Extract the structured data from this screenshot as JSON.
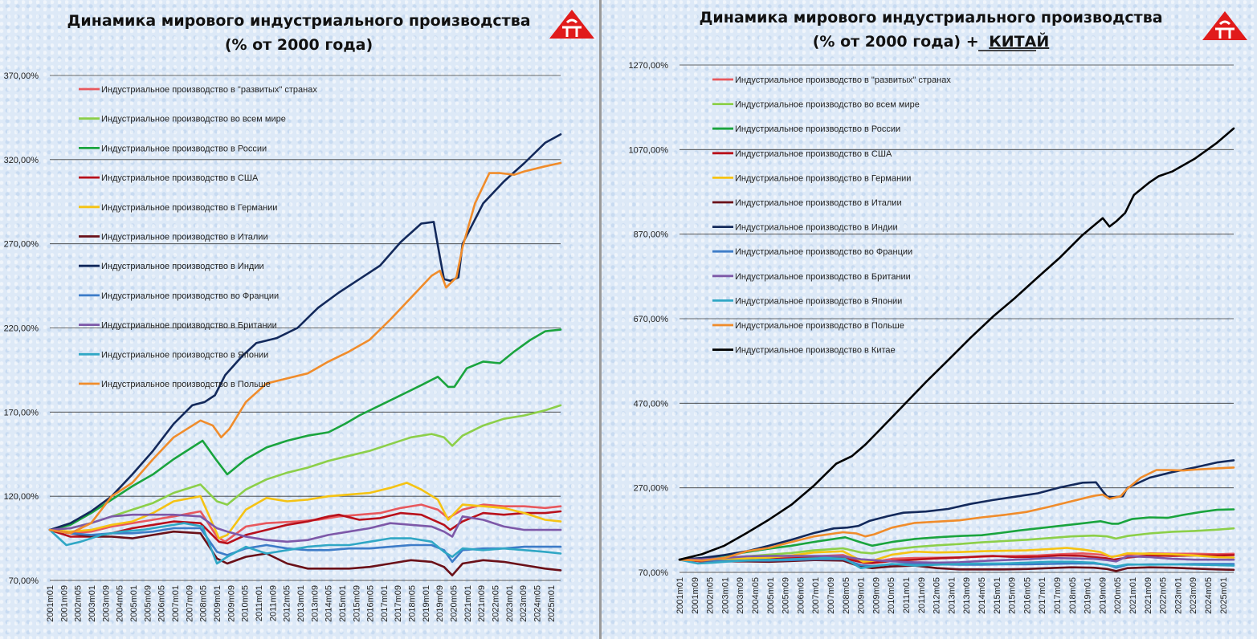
{
  "chart_data": [
    {
      "type": "line",
      "title": "Динамика мирового индустриального производства",
      "subtitle": "(% от 2000 года)",
      "ylim": [
        70,
        370
      ],
      "yticks": [
        "70,00%",
        "120,00%",
        "170,00%",
        "220,00%",
        "270,00%",
        "320,00%",
        "370,00%"
      ],
      "ytick_values": [
        70,
        120,
        170,
        220,
        270,
        320,
        370
      ],
      "x_labels": [
        "2001m01",
        "2001m09",
        "2002m05",
        "2003m01",
        "2003m09",
        "2004m05",
        "2005m01",
        "2005m09",
        "2006m05",
        "2007m01",
        "2007m09",
        "2008m05",
        "2009m01",
        "2009m09",
        "2010m05",
        "2011m01",
        "2011m09",
        "2012m05",
        "2013m01",
        "2013m09",
        "2014m05",
        "2015m01",
        "2015m09",
        "2016m05",
        "2017m01",
        "2017m09",
        "2018m05",
        "2019m01",
        "2019m09",
        "2020m05",
        "2021m01",
        "2021m09",
        "2022m05",
        "2023m01",
        "2023m09",
        "2024m05",
        "2025m01"
      ],
      "x_range": [
        2001.0,
        2025.75
      ],
      "grid": "horizontal",
      "legend": "top-left",
      "series": [
        {
          "name": "Индустриальное производство в \"развитых\" странах",
          "color": "#e8585d",
          "x": [
            2001,
            2002,
            2003,
            2004,
            2005,
            2006,
            2007,
            2008.3,
            2009.1,
            2009.5,
            2010.5,
            2011.5,
            2013,
            2014,
            2015,
            2016,
            2017,
            2018,
            2019,
            2019.8,
            2020.3,
            2021,
            2022,
            2023,
            2024,
            2025,
            2025.75
          ],
          "y": [
            100,
            98,
            99,
            102,
            104,
            106,
            108,
            111,
            96,
            93,
            102,
            104,
            105,
            106,
            108,
            109,
            110,
            113,
            115,
            112,
            107,
            112,
            115,
            114,
            114,
            113,
            114
          ]
        },
        {
          "name": "Индустриальное производство во всем мире",
          "color": "#8ccf49",
          "x": [
            2001,
            2002,
            2003,
            2004,
            2005,
            2006,
            2007,
            2008.3,
            2009.1,
            2009.6,
            2010.5,
            2011.5,
            2012.5,
            2013.5,
            2014.5,
            2015.5,
            2016.5,
            2017.5,
            2018.5,
            2019.5,
            2020.1,
            2020.5,
            2021,
            2022,
            2023,
            2024,
            2025,
            2025.75
          ],
          "y": [
            100,
            101,
            104,
            108,
            112,
            116,
            122,
            127,
            117,
            115,
            124,
            130,
            134,
            137,
            141,
            144,
            147,
            151,
            155,
            157,
            155,
            150,
            156,
            162,
            166,
            168,
            171,
            174
          ]
        },
        {
          "name": "Индустриальное производство в России",
          "color": "#1aa43e",
          "x": [
            2001,
            2002,
            2003,
            2004,
            2005,
            2006,
            2007,
            2008.4,
            2009.1,
            2009.6,
            2010.5,
            2011.5,
            2012.5,
            2013.5,
            2014.5,
            2015.3,
            2016,
            2017,
            2018,
            2019,
            2019.8,
            2020.3,
            2020.6,
            2021.2,
            2022,
            2022.8,
            2023.5,
            2024.3,
            2025,
            2025.75
          ],
          "y": [
            100,
            103,
            110,
            118,
            126,
            133,
            142,
            153,
            141,
            133,
            142,
            149,
            153,
            156,
            158,
            163,
            168,
            174,
            180,
            186,
            191,
            185,
            185,
            196,
            200,
            199,
            206,
            213,
            218,
            219
          ]
        },
        {
          "name": "Индустриальное производство в США",
          "color": "#b8101b",
          "x": [
            2001,
            2002,
            2003,
            2004,
            2005,
            2006,
            2007,
            2008.3,
            2009.2,
            2009.6,
            2010.5,
            2011.5,
            2012.5,
            2013.5,
            2014.5,
            2015,
            2016,
            2017,
            2018,
            2019,
            2020.1,
            2020.4,
            2021,
            2022,
            2023,
            2024,
            2025,
            2025.75
          ],
          "y": [
            100,
            96,
            96,
            98,
            101,
            103,
            105,
            104,
            93,
            92,
            97,
            100,
            103,
            105,
            108,
            109,
            106,
            107,
            110,
            109,
            103,
            100,
            105,
            110,
            109,
            110,
            110,
            111
          ]
        },
        {
          "name": "Индустриальное производство в Германии",
          "color": "#f5c313",
          "x": [
            2001,
            2002,
            2003,
            2004,
            2005,
            2006,
            2007,
            2008.3,
            2009.2,
            2009.6,
            2010.5,
            2011.5,
            2012.5,
            2013.5,
            2014.5,
            2015.5,
            2016.5,
            2017.5,
            2018.3,
            2019,
            2019.8,
            2020.3,
            2021,
            2022,
            2023,
            2024,
            2025,
            2025.75
          ],
          "y": [
            100,
            99,
            100,
            103,
            105,
            110,
            117,
            120,
            95,
            97,
            112,
            119,
            117,
            118,
            120,
            121,
            122,
            125,
            128,
            124,
            118,
            106,
            115,
            114,
            113,
            110,
            106,
            105
          ]
        },
        {
          "name": "Индустриальное производство в Италии",
          "color": "#6a1018",
          "x": [
            2001,
            2002,
            2003,
            2004,
            2005,
            2006,
            2007,
            2008.3,
            2009.1,
            2009.6,
            2010.5,
            2011.5,
            2012.5,
            2013.5,
            2014.5,
            2015.5,
            2016.5,
            2017.5,
            2018.5,
            2019.5,
            2020.1,
            2020.5,
            2021,
            2022,
            2023,
            2024,
            2025,
            2025.75
          ],
          "y": [
            100,
            98,
            96,
            96,
            95,
            97,
            99,
            98,
            83,
            80,
            84,
            86,
            80,
            77,
            77,
            77,
            78,
            80,
            82,
            81,
            78,
            73,
            80,
            82,
            81,
            79,
            77,
            76
          ]
        },
        {
          "name": "Индустриальное производство в Индии",
          "color": "#13295b",
          "x": [
            2001,
            2002,
            2003,
            2004,
            2005,
            2006,
            2007,
            2007.9,
            2008.5,
            2009,
            2009.5,
            2010.3,
            2011,
            2012,
            2013,
            2014,
            2015,
            2016,
            2017,
            2018,
            2019,
            2019.6,
            2019.9,
            2020.1,
            2020.4,
            2020.8,
            2021,
            2022,
            2023,
            2024,
            2025,
            2025.75
          ],
          "y": [
            100,
            104,
            111,
            120,
            133,
            147,
            163,
            174,
            176,
            180,
            192,
            203,
            211,
            214,
            220,
            232,
            241,
            249,
            257,
            271,
            282,
            283,
            262,
            249,
            248,
            250,
            270,
            294,
            307,
            318,
            330,
            335
          ]
        },
        {
          "name": "Индустриальное производство во Франции",
          "color": "#3d7cc8",
          "x": [
            2001,
            2002,
            2003,
            2004,
            2005,
            2006,
            2007,
            2008.3,
            2009.1,
            2009.6,
            2010.5,
            2011.5,
            2012.5,
            2013.5,
            2014.5,
            2015.5,
            2016.5,
            2017.5,
            2018.5,
            2019.5,
            2020.1,
            2020.5,
            2021,
            2022,
            2023,
            2024,
            2025,
            2025.75
          ],
          "y": [
            100,
            98,
            97,
            98,
            98,
            99,
            101,
            101,
            87,
            85,
            89,
            91,
            89,
            88,
            88,
            89,
            89,
            90,
            91,
            91,
            88,
            81,
            88,
            89,
            89,
            90,
            90,
            90
          ]
        },
        {
          "name": "Индустриальное производство в Британии",
          "color": "#7d58a8",
          "x": [
            2001,
            2002,
            2003,
            2004,
            2005,
            2006,
            2007,
            2008.3,
            2009.1,
            2009.6,
            2010.5,
            2011.5,
            2012.5,
            2013.5,
            2014.5,
            2015.5,
            2016.5,
            2017.5,
            2018.5,
            2019.5,
            2020.1,
            2020.5,
            2021,
            2022,
            2023,
            2024,
            2025,
            2025.75
          ],
          "y": [
            100,
            101,
            104,
            108,
            109,
            109,
            109,
            108,
            101,
            99,
            96,
            94,
            93,
            94,
            97,
            99,
            101,
            104,
            103,
            102,
            99,
            96,
            108,
            106,
            102,
            100,
            100,
            100
          ]
        },
        {
          "name": "Индустриальное производство в Японии",
          "color": "#30a7c5",
          "x": [
            2001,
            2001.8,
            2002.5,
            2003.5,
            2004.5,
            2005.5,
            2006.5,
            2007.5,
            2008.4,
            2009.1,
            2009.6,
            2010.5,
            2011.5,
            2012.5,
            2013.5,
            2014.5,
            2015.5,
            2016.5,
            2017.5,
            2018.5,
            2019.5,
            2020.1,
            2020.5,
            2021,
            2022,
            2023,
            2024,
            2025,
            2025.75
          ],
          "y": [
            100,
            91,
            93,
            97,
            99,
            100,
            102,
            104,
            102,
            80,
            84,
            90,
            86,
            88,
            90,
            91,
            91,
            93,
            95,
            95,
            93,
            87,
            84,
            89,
            88,
            89,
            88,
            87,
            86
          ]
        },
        {
          "name": "Индустриальное производство в Польше",
          "color": "#f08c2b",
          "x": [
            2001,
            2002,
            2003,
            2004,
            2005,
            2006,
            2007,
            2008.3,
            2008.9,
            2009.3,
            2009.7,
            2010.5,
            2011.5,
            2012.5,
            2013.5,
            2014.5,
            2015.5,
            2016.5,
            2017.5,
            2018.5,
            2019.5,
            2019.9,
            2020.2,
            2020.7,
            2021,
            2021.6,
            2022.3,
            2022.8,
            2023.5,
            2024,
            2025,
            2025.75
          ],
          "y": [
            100,
            98,
            104,
            120,
            128,
            142,
            155,
            165,
            162,
            155,
            160,
            176,
            187,
            190,
            193,
            200,
            206,
            213,
            225,
            238,
            251,
            254,
            244,
            250,
            268,
            294,
            312,
            312,
            311,
            313,
            316,
            318
          ]
        }
      ]
    },
    {
      "type": "line",
      "title": "Динамика мирового индустриального производства",
      "subtitle": "(% от 2000 года) +",
      "subtitle_emph": "КИТАЙ",
      "ylim": [
        70,
        1270
      ],
      "yticks": [
        "70,00%",
        "270,00%",
        "470,00%",
        "670,00%",
        "870,00%",
        "1070,00%",
        "1270,00%"
      ],
      "ytick_values": [
        70,
        270,
        470,
        670,
        870,
        1070,
        1270
      ],
      "x_labels": [
        "2001m01",
        "2001m09",
        "2002m05",
        "2003m01",
        "2003m09",
        "2004m05",
        "2005m01",
        "2005m09",
        "2006m05",
        "2007m01",
        "2007m09",
        "2008m05",
        "2009m01",
        "2009m09",
        "2010m05",
        "2011m01",
        "2011m09",
        "2012m05",
        "2013m01",
        "2013m09",
        "2014m05",
        "2015m01",
        "2015m09",
        "2016m05",
        "2017m01",
        "2017m09",
        "2018m05",
        "2019m01",
        "2019m09",
        "2020m05",
        "2021m01",
        "2021m09",
        "2022m05",
        "2023m01",
        "2023m09",
        "2024m05",
        "2025m01"
      ],
      "x_range": [
        2001.0,
        2025.75
      ],
      "grid": "horizontal",
      "legend": "top-left",
      "series": [
        {
          "name": "Индустриальное производство в \"развитых\" странах",
          "color": "#e8585d",
          "ref": 0
        },
        {
          "name": "Индустриальное производство во всем мире",
          "color": "#8ccf49",
          "ref": 1
        },
        {
          "name": "Индустриальное производство в России",
          "color": "#1aa43e",
          "ref": 2
        },
        {
          "name": "Индустриальное производство в США",
          "color": "#b8101b",
          "ref": 3
        },
        {
          "name": "Индустриальное производство в Германии",
          "color": "#f5c313",
          "ref": 4
        },
        {
          "name": "Индустриальное производство в Италии",
          "color": "#6a1018",
          "ref": 5
        },
        {
          "name": "Индустриальное производство в Индии",
          "color": "#13295b",
          "ref": 6
        },
        {
          "name": "Индустриальное производство во Франции",
          "color": "#3d7cc8",
          "ref": 7
        },
        {
          "name": "Индустриальное производство в Британии",
          "color": "#7d58a8",
          "ref": 8
        },
        {
          "name": "Индустриальное производство в Японии",
          "color": "#30a7c5",
          "ref": 9
        },
        {
          "name": "Индустриальное производство в Польше",
          "color": "#f08c2b",
          "ref": 10
        },
        {
          "name": "Индустриальное производство в Китае",
          "color": "#000000",
          "x": [
            2001,
            2002,
            2003,
            2004,
            2005,
            2006,
            2007,
            2008,
            2008.7,
            2009.3,
            2010,
            2011,
            2012,
            2013,
            2014,
            2015,
            2016,
            2017,
            2018,
            2019,
            2019.9,
            2020.2,
            2020.5,
            2020.9,
            2021.3,
            2022,
            2022.4,
            2023,
            2024,
            2025,
            2025.75
          ],
          "y": [
            100,
            113,
            133,
            163,
            195,
            230,
            275,
            327,
            345,
            372,
            410,
            465,
            520,
            572,
            625,
            675,
            720,
            768,
            815,
            868,
            908,
            888,
            900,
            920,
            963,
            993,
            1007,
            1018,
            1048,
            1086,
            1120
          ]
        }
      ]
    }
  ]
}
